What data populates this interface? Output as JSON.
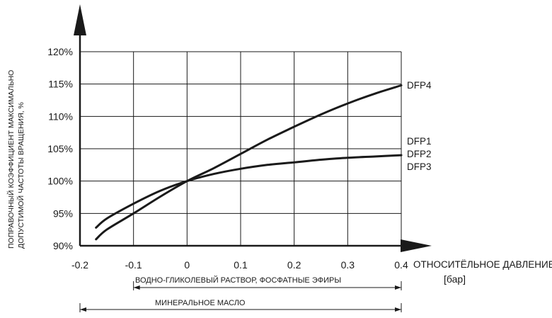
{
  "chart_data": {
    "type": "line",
    "x": [
      -0.17,
      -0.15,
      -0.1,
      -0.05,
      0.0,
      0.05,
      0.1,
      0.15,
      0.2,
      0.25,
      0.3,
      0.35,
      0.4
    ],
    "series": [
      {
        "name": "DFP4",
        "values": [
          91.0,
          92.5,
          95.0,
          97.6,
          100.0,
          102.0,
          104.2,
          106.4,
          108.4,
          110.3,
          112.0,
          113.5,
          114.8
        ]
      },
      {
        "name": "DFP1",
        "values": [
          92.8,
          94.2,
          96.5,
          98.5,
          100.0,
          101.1,
          101.9,
          102.5,
          102.9,
          103.3,
          103.6,
          103.8,
          104.0
        ]
      }
    ],
    "end_labels": [
      "DFP4",
      "DFP1",
      "DFP2",
      "DFP3"
    ],
    "xlim": [
      -0.2,
      0.4
    ],
    "ylim": [
      90,
      120
    ],
    "x_ticks": [
      "-0.2",
      "-0.1",
      "0",
      "0.1",
      "0.2",
      "0.3",
      "0.4"
    ],
    "y_ticks": [
      "90%",
      "95%",
      "100%",
      "105%",
      "110%",
      "115%",
      "120%"
    ],
    "ylabel_lines": [
      "ПОПРАВОЧНЫЙ КОЭФФИЦИЕНТ МАКСИМАЛЬНО",
      "ДОПУСТИМОЙ ЧАСТОТЫ ВРАЩЕНИЯ, %"
    ],
    "xlabel_lines": [
      "ОТНОСИТЁЛЬНОЕ ДАВЛЕНИЕ",
      "[бар]"
    ],
    "ranges": [
      {
        "label": "ВОДНО-ГЛИКОЛЕВЫЙ РАСТВОР, ФОСФАТНЫЕ ЭФИРЫ",
        "from": -0.1,
        "to": 0.4
      },
      {
        "label": "МИНЕРАЛЬНОЕ МАСЛО",
        "from": -0.2,
        "to": 0.4
      }
    ],
    "grid": true
  }
}
